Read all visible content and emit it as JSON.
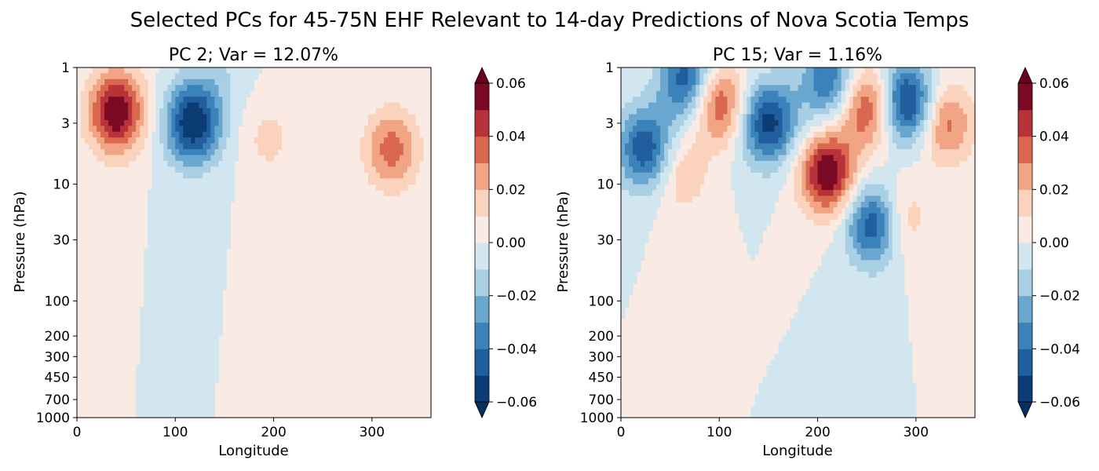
{
  "figure": {
    "suptitle": "Selected PCs for 45-75N EHF Relevant to 14-day Predictions of Nova Scotia Temps"
  },
  "chart_data": [
    {
      "type": "heatmap",
      "title": "PC 2; Var = 12.07%",
      "xlabel": "Longitude",
      "ylabel": "Pressure (hPa)",
      "xlim": [
        0,
        360
      ],
      "ylim": [
        1000,
        1
      ],
      "yscale": "log",
      "x_ticks": [
        0,
        100,
        200,
        300
      ],
      "y_ticks": [
        1,
        3,
        10,
        30,
        100,
        200,
        300,
        450,
        700,
        1000
      ],
      "colorbar": {
        "ticks": [
          "0.06",
          "0.04",
          "0.02",
          "0.00",
          "−0.02",
          "−0.04",
          "−0.06"
        ],
        "extend": "both",
        "cmap": "RdBu_r",
        "levels": [
          -0.06,
          -0.05,
          -0.04,
          -0.03,
          -0.02,
          -0.01,
          0.0,
          0.01,
          0.02,
          0.03,
          0.04,
          0.05,
          0.06
        ]
      },
      "features": [
        {
          "lon": 40,
          "p": 2.4,
          "value": 0.06
        },
        {
          "lon": 118,
          "p": 3.0,
          "value": -0.06
        },
        {
          "lon": 320,
          "p": 5.0,
          "value": 0.035
        },
        {
          "lon": 195,
          "p": 4.0,
          "value": 0.013
        },
        {
          "lon": 145,
          "p": 1.2,
          "value": -0.008
        }
      ]
    },
    {
      "type": "heatmap",
      "title": "PC 15; Var = 1.16%",
      "xlabel": "Longitude",
      "ylabel": "Pressure (hPa)",
      "xlim": [
        0,
        360
      ],
      "ylim": [
        1000,
        1
      ],
      "yscale": "log",
      "x_ticks": [
        0,
        100,
        200,
        300
      ],
      "y_ticks": [
        1,
        3,
        10,
        30,
        100,
        200,
        300,
        450,
        700,
        1000
      ],
      "colorbar": {
        "ticks": [
          "0.06",
          "0.04",
          "0.02",
          "0.00",
          "−0.02",
          "−0.04",
          "−0.06"
        ],
        "extend": "both",
        "cmap": "RdBu_r",
        "levels": [
          -0.06,
          -0.05,
          -0.04,
          -0.03,
          -0.02,
          -0.01,
          0.0,
          0.01,
          0.02,
          0.03,
          0.04,
          0.05,
          0.06
        ]
      },
      "features": [
        {
          "lon": 25,
          "p": 5.0,
          "value": -0.05
        },
        {
          "lon": 68,
          "p": 1.3,
          "value": -0.05
        },
        {
          "lon": 98,
          "p": 2.0,
          "value": 0.045
        },
        {
          "lon": 150,
          "p": 3.0,
          "value": -0.055
        },
        {
          "lon": 210,
          "p": 8.0,
          "value": 0.06
        },
        {
          "lon": 210,
          "p": 1.3,
          "value": -0.04
        },
        {
          "lon": 258,
          "p": 22.0,
          "value": -0.055
        },
        {
          "lon": 252,
          "p": 2.2,
          "value": 0.045
        },
        {
          "lon": 290,
          "p": 2.0,
          "value": -0.06
        },
        {
          "lon": 330,
          "p": 3.0,
          "value": 0.035
        },
        {
          "lon": 60,
          "p": 8.0,
          "value": 0.02
        },
        {
          "lon": 282,
          "p": 20.0,
          "value": 0.025
        }
      ]
    }
  ]
}
